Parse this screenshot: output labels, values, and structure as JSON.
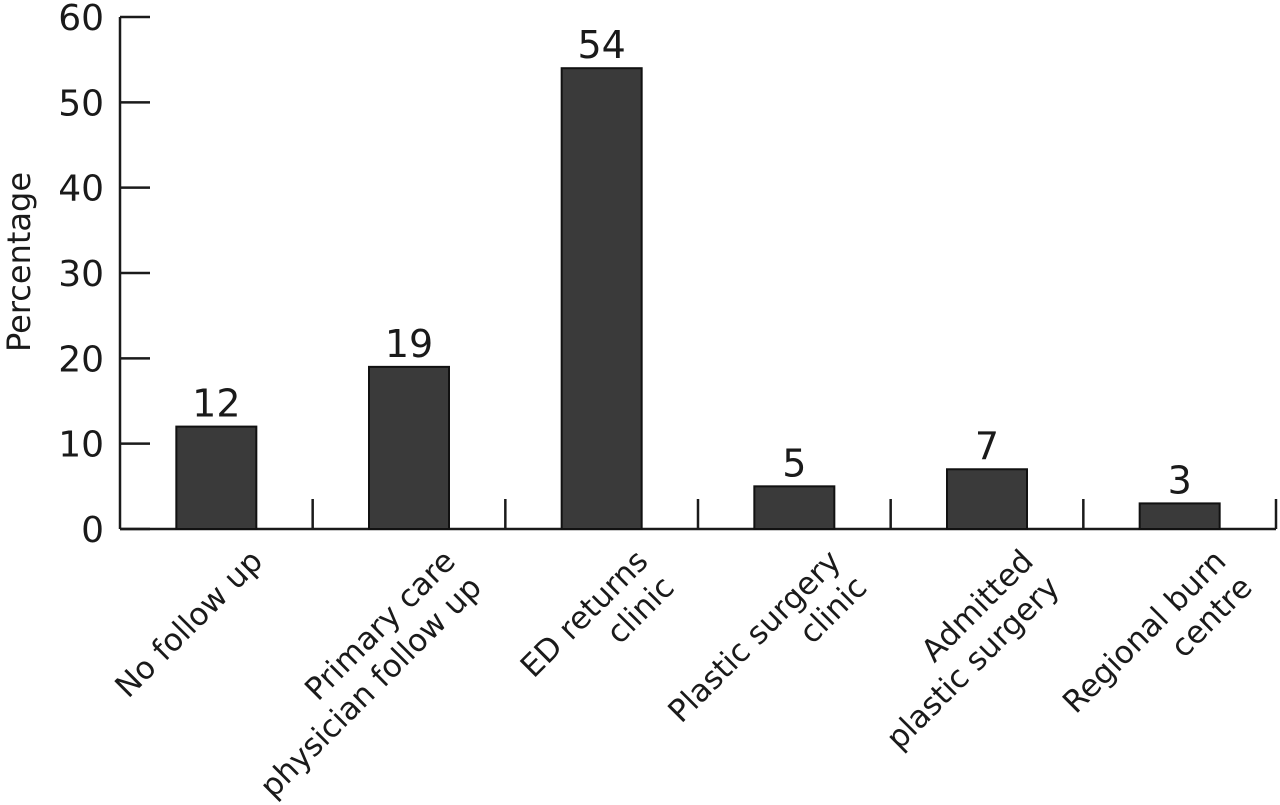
{
  "chart_data": {
    "type": "bar",
    "title": "",
    "xlabel": "",
    "ylabel": "Percentage",
    "ylim": [
      0,
      60
    ],
    "yticks": [
      0,
      10,
      20,
      30,
      40,
      50,
      60
    ],
    "grid": false,
    "legend": "none",
    "bar_color": "#3a3a3a",
    "categories": [
      [
        "No follow up"
      ],
      [
        "Primary care",
        "physician follow up"
      ],
      [
        "ED returns",
        "clinic"
      ],
      [
        "Plastic surgery",
        "clinic"
      ],
      [
        "Admitted",
        "plastic surgery"
      ],
      [
        "Regional burn",
        "centre"
      ]
    ],
    "values": [
      12,
      19,
      54,
      5,
      7,
      3
    ],
    "value_labels": [
      "12",
      "19",
      "54",
      "5",
      "7",
      "3"
    ]
  }
}
